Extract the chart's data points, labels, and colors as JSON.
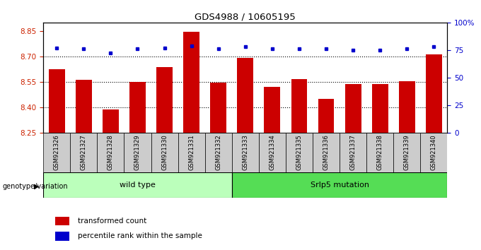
{
  "title": "GDS4988 / 10605195",
  "samples": [
    "GSM921326",
    "GSM921327",
    "GSM921328",
    "GSM921329",
    "GSM921330",
    "GSM921331",
    "GSM921332",
    "GSM921333",
    "GSM921334",
    "GSM921335",
    "GSM921336",
    "GSM921337",
    "GSM921338",
    "GSM921339",
    "GSM921340"
  ],
  "red_values": [
    8.625,
    8.56,
    8.385,
    8.55,
    8.635,
    8.845,
    8.545,
    8.69,
    8.52,
    8.565,
    8.45,
    8.535,
    8.535,
    8.555,
    8.71
  ],
  "blue_values": [
    77,
    76,
    72,
    76,
    77,
    79,
    76,
    78,
    76,
    76,
    76,
    75,
    75,
    76,
    78
  ],
  "ylim_left": [
    8.25,
    8.9
  ],
  "ylim_right": [
    0,
    100
  ],
  "yticks_left": [
    8.25,
    8.4,
    8.55,
    8.7,
    8.85
  ],
  "yticks_right": [
    0,
    25,
    50,
    75,
    100
  ],
  "ytick_labels_right": [
    "0",
    "25",
    "50",
    "75",
    "100%"
  ],
  "group1_label": "wild type",
  "group2_label": "Srlp5 mutation",
  "group1_count": 7,
  "genotype_label": "genotype/variation",
  "legend_red": "transformed count",
  "legend_blue": "percentile rank within the sample",
  "bar_color": "#cc0000",
  "dot_color": "#0000cc",
  "bg_color": "#ffffff",
  "tick_label_color_left": "#cc2200",
  "tick_label_color_right": "#0000cc",
  "group1_bg": "#bbffbb",
  "group2_bg": "#55dd55",
  "xticklabel_bg": "#cccccc"
}
